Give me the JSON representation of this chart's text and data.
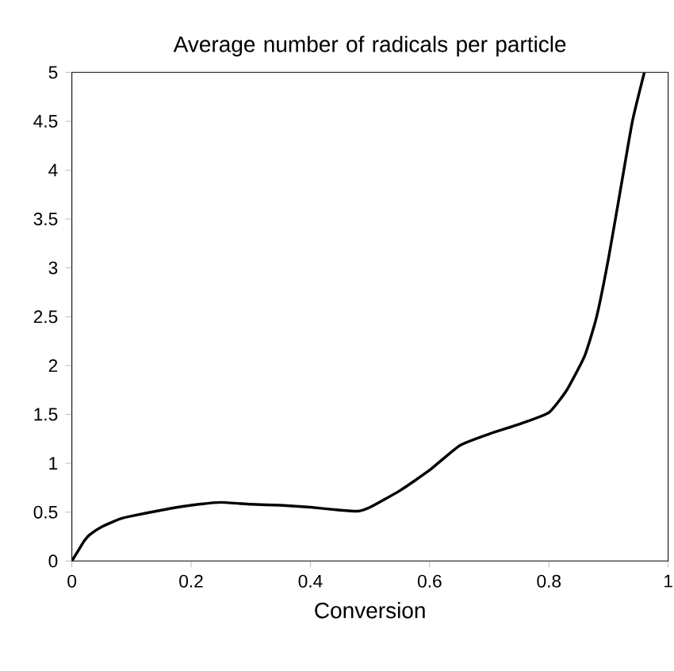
{
  "chart_data": {
    "type": "line",
    "title": "Average number of radicals per particle",
    "xlabel": "Conversion",
    "xlim": [
      0,
      1
    ],
    "ylim": [
      0,
      5
    ],
    "xticks": [
      0,
      0.2,
      0.4,
      0.6,
      0.8,
      1
    ],
    "yticks": [
      0,
      0.5,
      1,
      1.5,
      2,
      2.5,
      3,
      3.5,
      4,
      4.5,
      5
    ],
    "series": [
      {
        "color": "#000000",
        "x": [
          0,
          0.01,
          0.02,
          0.03,
          0.05,
          0.08,
          0.1,
          0.15,
          0.2,
          0.25,
          0.3,
          0.35,
          0.4,
          0.45,
          0.48,
          0.5,
          0.55,
          0.6,
          0.65,
          0.7,
          0.75,
          0.8,
          0.83,
          0.86,
          0.88,
          0.9,
          0.92,
          0.94,
          0.96
        ],
        "values": [
          0,
          0.1,
          0.2,
          0.27,
          0.35,
          0.43,
          0.46,
          0.52,
          0.57,
          0.6,
          0.58,
          0.57,
          0.55,
          0.52,
          0.51,
          0.55,
          0.72,
          0.93,
          1.18,
          1.3,
          1.4,
          1.52,
          1.75,
          2.1,
          2.5,
          3.1,
          3.8,
          4.5,
          5.0
        ]
      }
    ],
    "grid": false,
    "legend": false,
    "marker": "none",
    "line_style": "solid"
  }
}
